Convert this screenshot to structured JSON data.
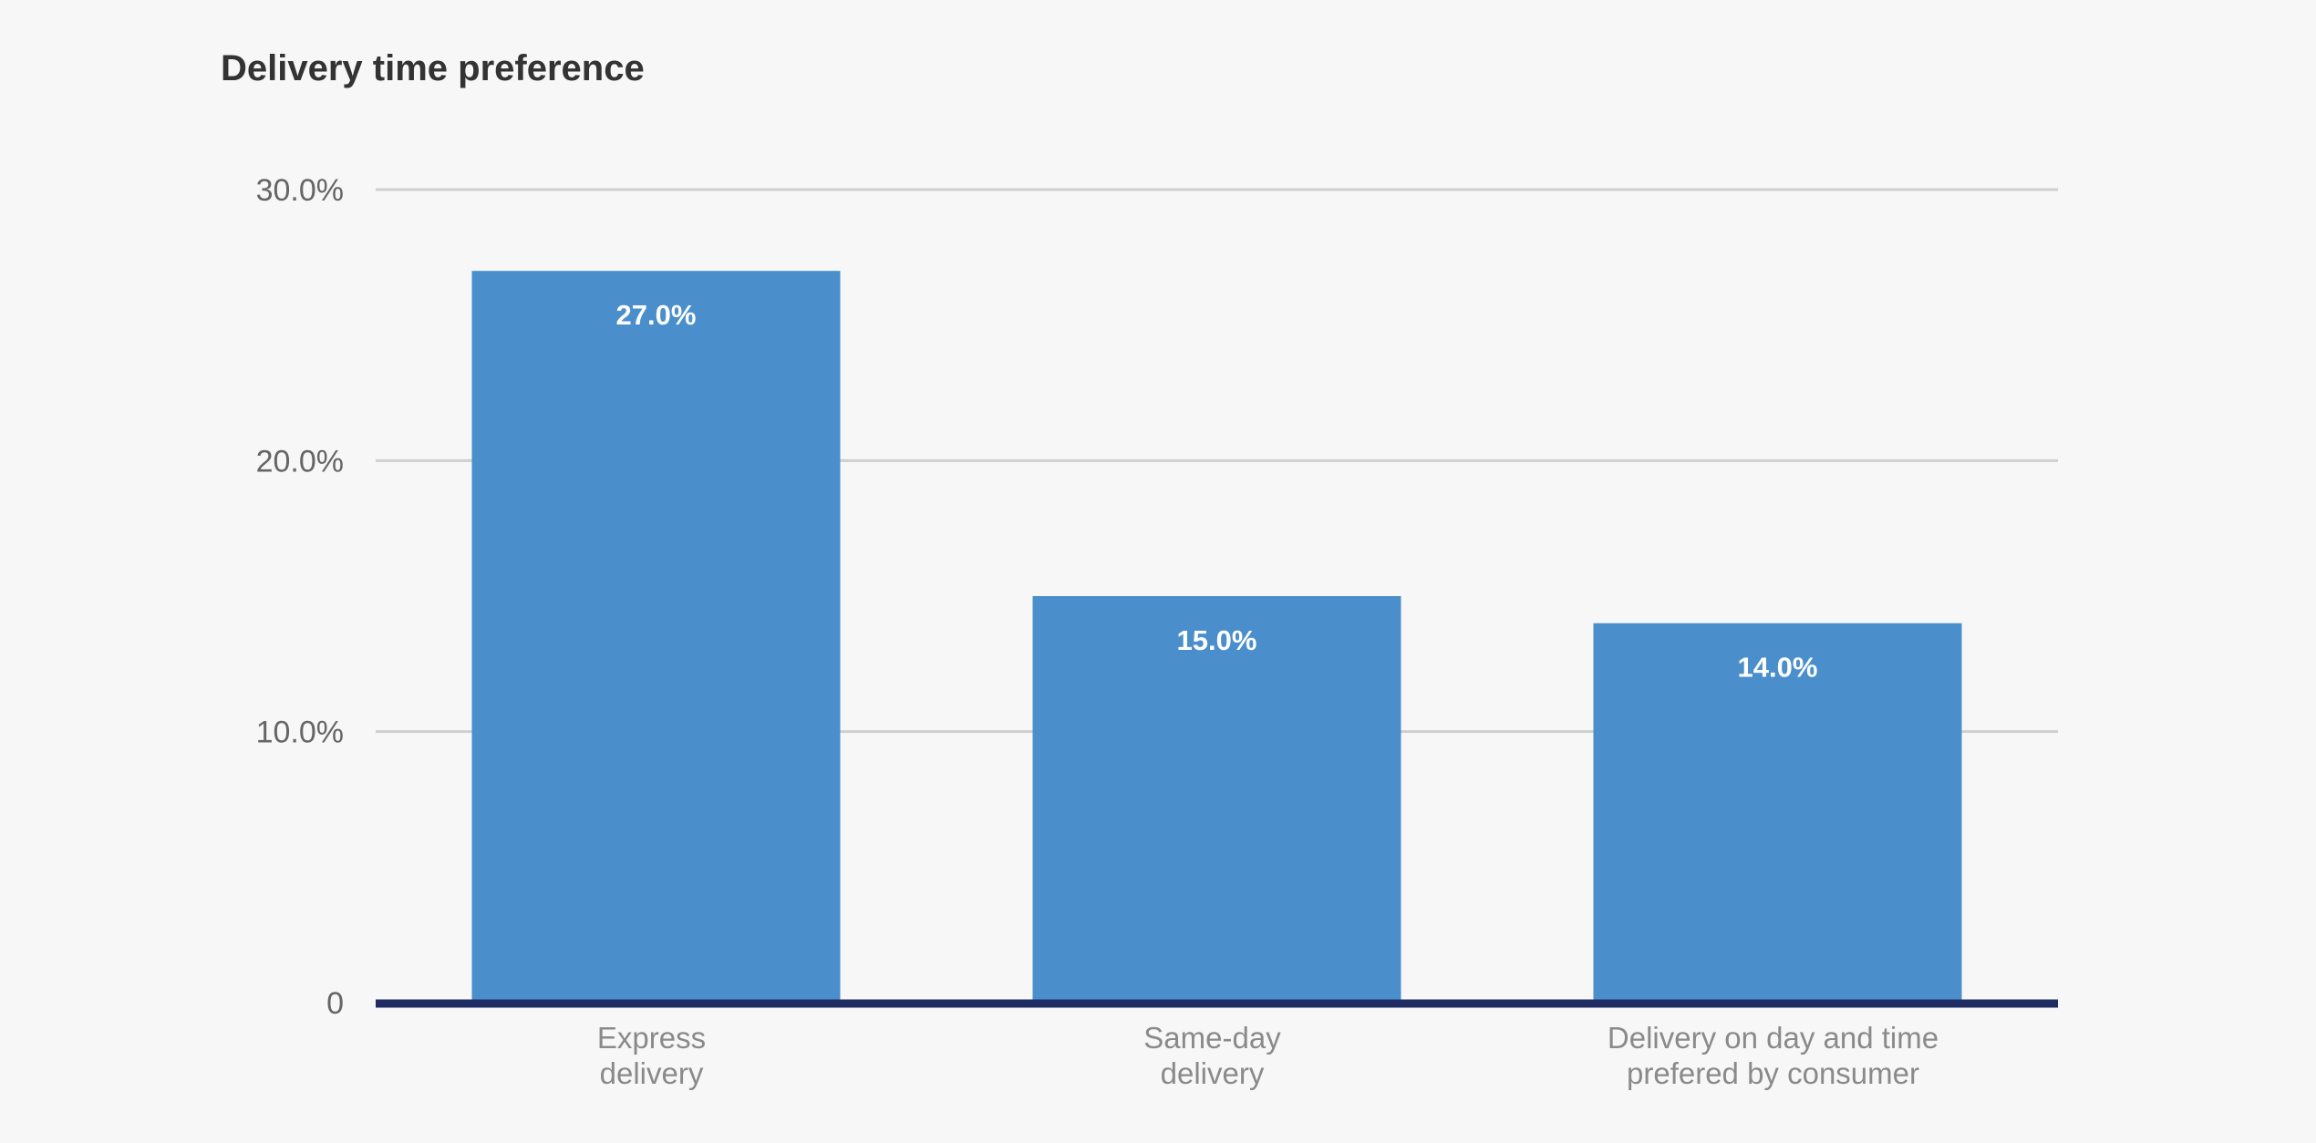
{
  "chart_data": {
    "type": "bar",
    "title": "Delivery time preference",
    "categories": [
      [
        "Express",
        "delivery"
      ],
      [
        "Same-day",
        "delivery"
      ],
      [
        "Delivery on day and time",
        "prefered by consumer"
      ]
    ],
    "values": [
      27.0,
      15.0,
      14.0
    ],
    "data_labels": [
      "27.0%",
      "15.0%",
      "14.0%"
    ],
    "ylim": [
      0,
      30
    ],
    "yticks": [
      0,
      10,
      20,
      30
    ],
    "ytick_labels": [
      "0",
      "10.0%",
      "20.0%",
      "30.0%"
    ],
    "xlabel": "",
    "ylabel": "",
    "grid": true,
    "legend": "none",
    "colors": {
      "bar": "#4a8fcb",
      "grid": "#cfcfcf",
      "axis": "#1f2b63"
    }
  }
}
